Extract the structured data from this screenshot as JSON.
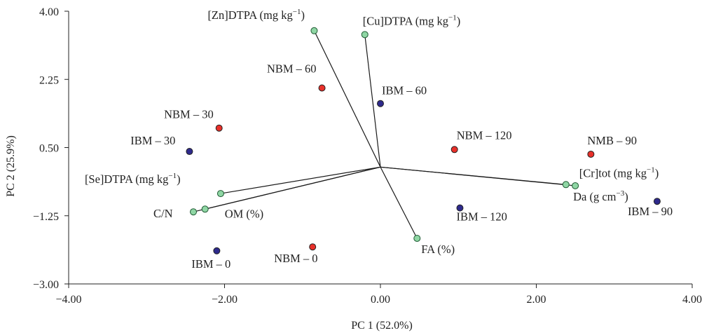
{
  "chart_data": {
    "type": "scatter",
    "subtype": "pca-biplot",
    "title": "",
    "xlabel": "PC 1 (52.0%)",
    "ylabel": "PC 2 (25.9%)",
    "xlim": [
      -4.0,
      4.0
    ],
    "ylim": [
      -3.0,
      4.0
    ],
    "xticks": [
      "-4.00",
      "-2.00",
      "0.00",
      "2.00",
      "4.00"
    ],
    "yticks": [
      "-3.00",
      "-1.25",
      "0.50",
      "2.25",
      "4.00"
    ],
    "grid": false,
    "legend": "none",
    "colors": {
      "ibm": "#2e2a8c",
      "nbm": "#e8302a",
      "variable": "#8fd6a4",
      "vector": "#1a1a1a"
    },
    "observations": [
      {
        "label": "NBM – 60",
        "x": -0.75,
        "y": 2.03,
        "group": "nbm"
      },
      {
        "label": "IBM – 60",
        "x": 0.0,
        "y": 1.63,
        "group": "ibm"
      },
      {
        "label": "NBM – 30",
        "x": -2.07,
        "y": 1.0,
        "group": "nbm"
      },
      {
        "label": "IBM – 30",
        "x": -2.45,
        "y": 0.4,
        "group": "ibm"
      },
      {
        "label": "NBM – 120",
        "x": 0.95,
        "y": 0.45,
        "group": "nbm"
      },
      {
        "label": "NMB – 90",
        "x": 2.7,
        "y": 0.33,
        "group": "nbm"
      },
      {
        "label": "IBM – 90",
        "x": 3.55,
        "y": -0.88,
        "group": "ibm"
      },
      {
        "label": "IBM – 120",
        "x": 1.02,
        "y": -1.05,
        "group": "ibm"
      },
      {
        "label": "IBM – 0",
        "x": -2.1,
        "y": -2.15,
        "group": "ibm"
      },
      {
        "label": "NBM – 0",
        "x": -0.87,
        "y": -2.05,
        "group": "nbm"
      }
    ],
    "variables": [
      {
        "label": "[Zn]DTPA (mg kg",
        "sup": "−1",
        "end": ")",
        "x": -0.85,
        "y": 3.5
      },
      {
        "label": "[Cu]DTPA (mg kg",
        "sup": "−1",
        "end": ")",
        "x": -0.2,
        "y": 3.4
      },
      {
        "label": "[Se]DTPA (mg kg",
        "sup": "−1",
        "end": ")",
        "x": -2.05,
        "y": -0.68
      },
      {
        "label": "C/N",
        "sup": "",
        "end": "",
        "x": -2.4,
        "y": -1.15
      },
      {
        "label": "OM (%)",
        "sup": "",
        "end": "",
        "x": -2.25,
        "y": -1.08
      },
      {
        "label": "FA (%)",
        "sup": "",
        "end": "",
        "x": 0.47,
        "y": -1.83
      },
      {
        "label": "[Cr]tot (mg kg",
        "sup": "−1",
        "end": ")",
        "x": 2.38,
        "y": -0.45
      },
      {
        "label": "Da (g cm",
        "sup": "−3",
        "end": ")",
        "x": 2.5,
        "y": -0.48
      }
    ]
  }
}
